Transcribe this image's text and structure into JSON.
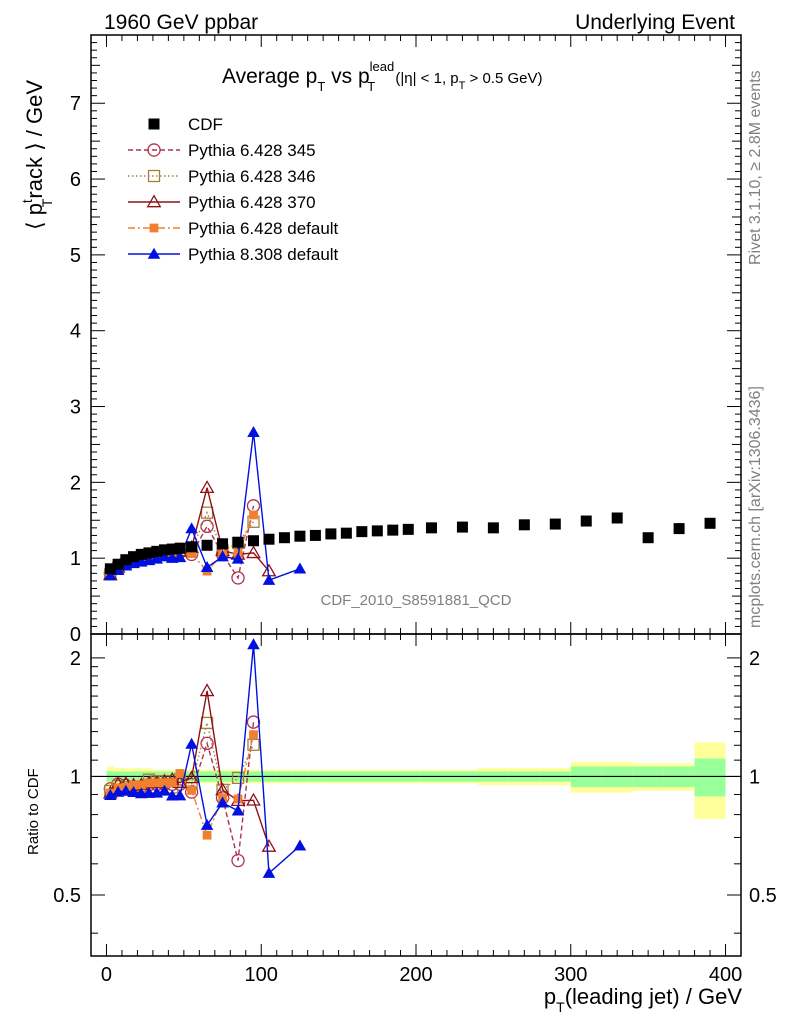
{
  "header": {
    "left": "1960 GeV ppbar",
    "right": "Underlying Event"
  },
  "side": {
    "rivet": "Rivet 3.1.10, ≥ 2.8M events",
    "mcplots": "mcplots.cern.ch [arXiv:1306.3436]"
  },
  "colors": {
    "cdf": "#000000",
    "p345": "#b03050",
    "p346": "#a08040",
    "p370": "#901018",
    "p6def": "#f08030",
    "p8": "#0010e0",
    "band_outer": "#ffff99",
    "band_inner": "#99ff99"
  },
  "chart_data": {
    "type": "scatter",
    "title": {
      "main": "Average p",
      "sub1": "T",
      "vs": " vs p",
      "sub2": "T",
      "sup2": "lead",
      "cond1": " (|η| < 1, p",
      "cond_sub": "T",
      "cond2": " > 0.5 GeV)"
    },
    "watermark": "CDF_2010_S8591881_QCD",
    "xlabel": {
      "p": "p",
      "sub": "T",
      "rest": "(leading jet) / GeV"
    },
    "ylabel": {
      "l1": "⟨ p",
      "sup": "t",
      "sub": "T",
      "l2": "rack ⟩ / GeV"
    },
    "ratio_ylabel": "Ratio to CDF",
    "xlim": [
      -10,
      410
    ],
    "ylim": [
      0,
      7.9
    ],
    "ratio_ylim": [
      0.35,
      2.3
    ],
    "x_ticks": [
      0,
      100,
      200,
      300,
      400
    ],
    "x_tick_labels": [
      "0",
      "100",
      "200",
      "300",
      "400"
    ],
    "y_ticks": [
      0,
      1,
      2,
      3,
      4,
      5,
      6,
      7
    ],
    "y_tick_labels": [
      "0",
      "1",
      "2",
      "3",
      "4",
      "5",
      "6",
      "7"
    ],
    "ratio_y_ticks": [
      0.5,
      1,
      2
    ],
    "ratio_y_tick_labels": [
      "0.5",
      "1",
      "2"
    ],
    "legend": [
      {
        "key": "cdf",
        "label": "CDF"
      },
      {
        "key": "p345",
        "label": "Pythia 6.428 345"
      },
      {
        "key": "p346",
        "label": "Pythia 6.428 346"
      },
      {
        "key": "p370",
        "label": "Pythia 6.428 370"
      },
      {
        "key": "p6def",
        "label": "Pythia 6.428 default"
      },
      {
        "key": "p8",
        "label": "Pythia 8.308 default"
      }
    ],
    "cdf": {
      "x": [
        2.5,
        7.5,
        12.5,
        17.5,
        22.5,
        27.5,
        32.5,
        37.5,
        42.5,
        47.5,
        55,
        65,
        75,
        85,
        95,
        105,
        115,
        125,
        135,
        145,
        155,
        165,
        175,
        185,
        195,
        210,
        230,
        250,
        270,
        290,
        310,
        330,
        350,
        370,
        390
      ],
      "y": [
        0.86,
        0.92,
        0.98,
        1.02,
        1.05,
        1.07,
        1.09,
        1.11,
        1.12,
        1.13,
        1.15,
        1.17,
        1.19,
        1.21,
        1.23,
        1.25,
        1.27,
        1.29,
        1.3,
        1.32,
        1.33,
        1.35,
        1.36,
        1.37,
        1.38,
        1.4,
        1.41,
        1.4,
        1.44,
        1.45,
        1.49,
        1.53,
        1.27,
        1.39,
        1.46
      ],
      "band_inner": [
        0.03,
        0.03,
        0.03,
        0.03,
        0.03,
        0.03,
        0.03,
        0.03,
        0.03,
        0.03,
        0.03,
        0.03,
        0.03,
        0.03,
        0.03,
        0.03,
        0.03,
        0.03,
        0.03,
        0.03,
        0.03,
        0.03,
        0.03,
        0.03,
        0.03,
        0.03,
        0.03,
        0.03,
        0.03,
        0.03,
        0.06,
        0.06,
        0.06,
        0.06,
        0.11
      ],
      "band_outer": [
        0.06,
        0.05,
        0.05,
        0.05,
        0.05,
        0.05,
        0.04,
        0.04,
        0.04,
        0.04,
        0.04,
        0.04,
        0.04,
        0.04,
        0.04,
        0.04,
        0.04,
        0.04,
        0.04,
        0.04,
        0.04,
        0.04,
        0.04,
        0.04,
        0.04,
        0.04,
        0.04,
        0.05,
        0.05,
        0.05,
        0.09,
        0.09,
        0.08,
        0.08,
        0.22
      ]
    },
    "series": [
      {
        "key": "p345",
        "marker": "circle",
        "dash": "5,3",
        "x": [
          2.5,
          7.5,
          12.5,
          17.5,
          22.5,
          27.5,
          32.5,
          37.5,
          42.5,
          47.5,
          55,
          65,
          75,
          85,
          95
        ],
        "y": [
          0.8,
          0.88,
          0.93,
          0.96,
          0.99,
          1.02,
          1.04,
          1.06,
          1.07,
          1.08,
          1.05,
          1.42,
          1.05,
          0.74,
          1.69
        ]
      },
      {
        "key": "p346",
        "marker": "square",
        "dash": "1.5,2.5",
        "x": [
          2.5,
          7.5,
          12.5,
          17.5,
          22.5,
          27.5,
          32.5,
          37.5,
          42.5,
          47.5,
          55,
          65,
          75,
          85,
          95
        ],
        "y": [
          0.79,
          0.87,
          0.92,
          0.96,
          0.99,
          1.05,
          1.06,
          1.08,
          1.05,
          1.11,
          1.1,
          1.6,
          1.1,
          1.2,
          1.48
        ]
      },
      {
        "key": "p370",
        "marker": "triangle-open",
        "dash": "",
        "x": [
          2.5,
          7.5,
          12.5,
          17.5,
          22.5,
          27.5,
          32.5,
          37.5,
          42.5,
          47.5,
          55,
          65,
          75,
          85,
          95,
          105
        ],
        "y": [
          0.78,
          0.88,
          0.94,
          0.97,
          1.0,
          1.03,
          1.05,
          1.08,
          1.1,
          1.09,
          1.14,
          1.93,
          1.1,
          1.05,
          1.07,
          0.83
        ]
      },
      {
        "key": "p6def",
        "marker": "square-filled",
        "dash": "7,3,2,3",
        "x": [
          2.5,
          7.5,
          12.5,
          17.5,
          22.5,
          27.5,
          32.5,
          37.5,
          42.5,
          47.5,
          55,
          65,
          75,
          85,
          95
        ],
        "y": [
          0.78,
          0.86,
          0.92,
          0.97,
          1.0,
          1.03,
          1.05,
          1.07,
          1.08,
          1.15,
          1.06,
          0.83,
          1.05,
          1.06,
          1.57
        ]
      },
      {
        "key": "p8",
        "marker": "triangle-filled",
        "dash": "",
        "x": [
          2.5,
          7.5,
          12.5,
          17.5,
          22.5,
          27.5,
          32.5,
          37.5,
          42.5,
          47.5,
          55,
          65,
          75,
          85,
          95,
          105,
          125
        ],
        "y": [
          0.77,
          0.84,
          0.9,
          0.93,
          0.95,
          0.97,
          0.99,
          1.02,
          1.0,
          1.01,
          1.39,
          0.88,
          1.02,
          0.99,
          2.66,
          0.71,
          0.86
        ]
      }
    ]
  }
}
